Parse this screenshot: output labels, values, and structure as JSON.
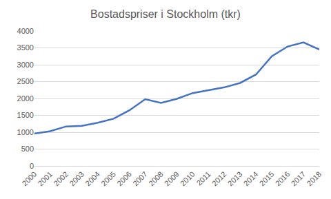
{
  "chart_data": {
    "type": "line",
    "title": "Bostadspriser i Stockholm (tkr)",
    "categories": [
      "2000",
      "2001",
      "2002",
      "2003",
      "2004",
      "2005",
      "2006",
      "2007",
      "2008",
      "2009",
      "2010",
      "2011",
      "2012",
      "2013",
      "2014",
      "2015",
      "2016",
      "2017",
      "2018"
    ],
    "values": [
      960,
      1030,
      1170,
      1190,
      1280,
      1400,
      1650,
      1980,
      1870,
      1990,
      2160,
      2240,
      2330,
      2460,
      2710,
      3250,
      3540,
      3660,
      3450
    ],
    "color": "#4472c4",
    "ylim": [
      0,
      4000
    ],
    "yticks": [
      0,
      500,
      1000,
      1500,
      2000,
      2500,
      3000,
      3500,
      4000
    ],
    "grid": true
  }
}
